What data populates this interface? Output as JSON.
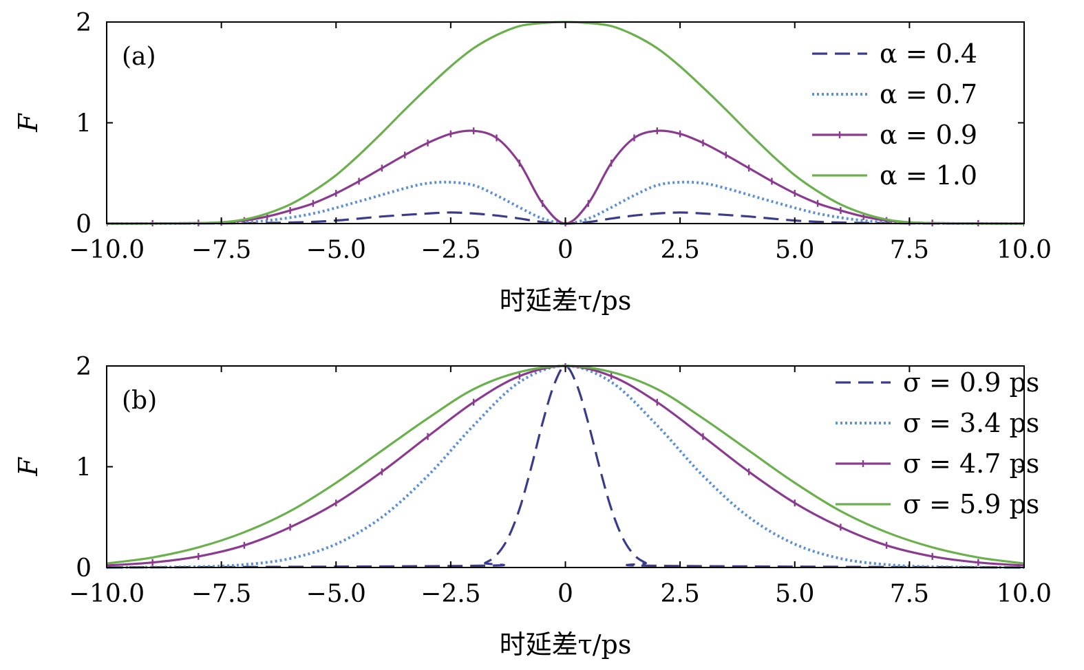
{
  "chart_data": [
    {
      "type": "line",
      "panel_label": "(a)",
      "xlabel": "时延差τ/ps",
      "ylabel": "F",
      "xlim": [
        -10,
        10
      ],
      "ylim": [
        0,
        2
      ],
      "xticks": [
        -10,
        -7.5,
        -5,
        -2.5,
        0,
        2.5,
        5,
        7.5,
        10
      ],
      "xtick_labels": [
        "−10.0",
        "−7.5",
        "−5.0",
        "−2.5",
        "0",
        "2.5",
        "5.0",
        "7.5",
        "10.0"
      ],
      "yticks": [
        0,
        1,
        2
      ],
      "ytick_labels": [
        "0",
        "1",
        "2"
      ],
      "legend_position": "top-right",
      "series": [
        {
          "name": "α = 0.4",
          "style": "dashed",
          "color": "#3b3b8c",
          "x": [
            -10,
            -7.5,
            -6,
            -5,
            -4,
            -3,
            -2.5,
            -2,
            -1.5,
            -1,
            -0.5,
            0,
            0.5,
            1,
            1.5,
            2,
            2.5,
            3,
            4,
            5,
            6,
            7.5,
            10
          ],
          "y": [
            0,
            0.003,
            0.01,
            0.03,
            0.07,
            0.1,
            0.11,
            0.1,
            0.08,
            0.05,
            0.015,
            0,
            0.015,
            0.05,
            0.08,
            0.1,
            0.11,
            0.1,
            0.07,
            0.03,
            0.01,
            0.003,
            0
          ]
        },
        {
          "name": "α = 0.7",
          "style": "dotted",
          "color": "#5b8fd6",
          "x": [
            -10,
            -7.5,
            -6.5,
            -5.5,
            -4.5,
            -3.5,
            -3,
            -2.5,
            -2,
            -1.5,
            -1,
            -0.5,
            0,
            0.5,
            1,
            1.5,
            2,
            2.5,
            3,
            3.5,
            4.5,
            5.5,
            6.5,
            7.5,
            10
          ],
          "y": [
            0,
            0.005,
            0.03,
            0.1,
            0.22,
            0.35,
            0.4,
            0.41,
            0.38,
            0.28,
            0.16,
            0.05,
            0,
            0.05,
            0.16,
            0.28,
            0.38,
            0.41,
            0.4,
            0.35,
            0.22,
            0.1,
            0.03,
            0.005,
            0
          ]
        },
        {
          "name": "α = 0.9",
          "style": "solid-marker",
          "color": "#8b3b8f",
          "x": [
            -10,
            -9,
            -8,
            -7.5,
            -7,
            -6.5,
            -6,
            -5.5,
            -5,
            -4.5,
            -4,
            -3.5,
            -3,
            -2.5,
            -2,
            -1.5,
            -1,
            -0.5,
            0,
            0.5,
            1,
            1.5,
            2,
            2.5,
            3,
            3.5,
            4,
            4.5,
            5,
            5.5,
            6,
            6.5,
            7,
            7.5,
            8,
            9,
            10
          ],
          "y": [
            0,
            0.001,
            0.005,
            0.012,
            0.03,
            0.07,
            0.13,
            0.2,
            0.3,
            0.42,
            0.55,
            0.68,
            0.8,
            0.89,
            0.92,
            0.85,
            0.6,
            0.2,
            0,
            0.2,
            0.6,
            0.85,
            0.92,
            0.89,
            0.8,
            0.68,
            0.55,
            0.42,
            0.3,
            0.2,
            0.13,
            0.07,
            0.03,
            0.012,
            0.005,
            0.001,
            0
          ]
        },
        {
          "name": "α = 1.0",
          "style": "solid",
          "color": "#6ab04c",
          "x": [
            -10,
            -9,
            -8,
            -7.5,
            -7,
            -6.5,
            -6,
            -5.5,
            -5,
            -4.5,
            -4,
            -3.5,
            -3,
            -2.5,
            -2,
            -1.5,
            -1,
            -0.5,
            0,
            0.5,
            1,
            1.5,
            2,
            2.5,
            3,
            3.5,
            4,
            4.5,
            5,
            5.5,
            6,
            6.5,
            7,
            7.5,
            8,
            9,
            10
          ],
          "y": [
            0,
            0.001,
            0.005,
            0.012,
            0.04,
            0.1,
            0.19,
            0.32,
            0.48,
            0.68,
            0.9,
            1.13,
            1.35,
            1.56,
            1.74,
            1.87,
            1.96,
            1.99,
            2,
            1.99,
            1.96,
            1.87,
            1.74,
            1.56,
            1.35,
            1.13,
            0.9,
            0.68,
            0.48,
            0.32,
            0.19,
            0.1,
            0.04,
            0.012,
            0.005,
            0.001,
            0
          ]
        }
      ]
    },
    {
      "type": "line",
      "panel_label": "(b)",
      "xlabel": "时延差τ/ps",
      "ylabel": "F",
      "xlim": [
        -10,
        10
      ],
      "ylim": [
        0,
        2
      ],
      "xticks": [
        -10,
        -7.5,
        -5,
        -2.5,
        0,
        2.5,
        5,
        7.5,
        10
      ],
      "xtick_labels": [
        "−10.0",
        "−7.5",
        "−5.0",
        "−2.5",
        "0",
        "2.5",
        "5.0",
        "7.5",
        "10.0"
      ],
      "yticks": [
        0,
        1,
        2
      ],
      "ytick_labels": [
        "0",
        "1",
        "2"
      ],
      "legend_position": "top-right",
      "series": [
        {
          "name": "σ = 0.9 ps",
          "style": "dashed",
          "color": "#3b3b8c",
          "x": [
            -10,
            -2,
            -1.75,
            -1.5,
            -1.25,
            -1,
            -0.75,
            -0.5,
            -0.25,
            0,
            0.25,
            0.5,
            0.75,
            1,
            1.25,
            1.5,
            1.75,
            2,
            10
          ],
          "y": [
            0,
            0.017,
            0.046,
            0.124,
            0.293,
            0.582,
            0.984,
            1.432,
            1.81,
            2,
            1.81,
            1.432,
            0.984,
            0.582,
            0.293,
            0.124,
            0.046,
            0.017,
            0
          ]
        },
        {
          "name": "σ = 3.4 ps",
          "style": "dotted",
          "color": "#5b8fd6",
          "x": [
            -10,
            -8,
            -7,
            -6,
            -5,
            -4,
            -3,
            -2,
            -1,
            0,
            1,
            2,
            3,
            4,
            5,
            6,
            7,
            8,
            10
          ],
          "y": [
            0,
            0.008,
            0.029,
            0.089,
            0.232,
            0.5,
            0.91,
            1.41,
            1.84,
            2,
            1.84,
            1.41,
            0.91,
            0.5,
            0.232,
            0.089,
            0.029,
            0.008,
            0
          ]
        },
        {
          "name": "σ = 4.7 ps",
          "style": "solid-marker",
          "color": "#8b3b8f",
          "x": [
            -10,
            -9,
            -8,
            -7,
            -6,
            -5,
            -4,
            -3,
            -2,
            -1,
            0,
            1,
            2,
            3,
            4,
            5,
            6,
            7,
            8,
            9,
            10
          ],
          "y": [
            0.02,
            0.05,
            0.11,
            0.22,
            0.4,
            0.64,
            0.95,
            1.3,
            1.64,
            1.9,
            2,
            1.9,
            1.64,
            1.3,
            0.95,
            0.64,
            0.4,
            0.22,
            0.11,
            0.05,
            0.02
          ]
        },
        {
          "name": "σ = 5.9 ps",
          "style": "solid",
          "color": "#6ab04c",
          "x": [
            -10,
            -9,
            -8,
            -7,
            -6,
            -5,
            -4,
            -3,
            -2,
            -1,
            0,
            1,
            2,
            3,
            4,
            5,
            6,
            7,
            8,
            9,
            10
          ],
          "y": [
            0.04,
            0.1,
            0.2,
            0.35,
            0.56,
            0.84,
            1.16,
            1.48,
            1.77,
            1.94,
            2,
            1.94,
            1.77,
            1.48,
            1.16,
            0.84,
            0.56,
            0.35,
            0.2,
            0.1,
            0.04
          ]
        }
      ]
    }
  ]
}
